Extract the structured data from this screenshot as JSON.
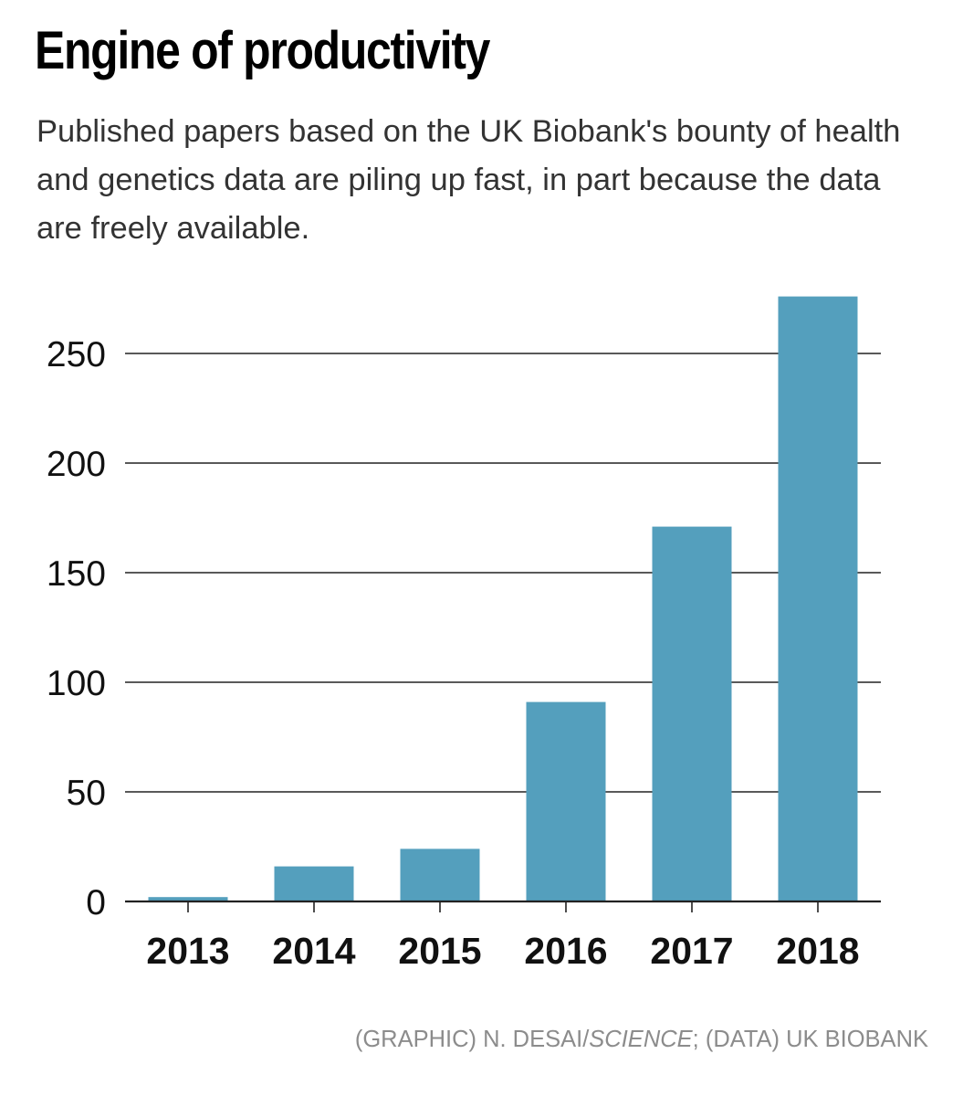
{
  "header": {
    "title": "Engine of productivity",
    "subtitle": "Published papers based on the UK Biobank's bounty of health and genetics data are piling up fast, in part because the data are freely available."
  },
  "credit": {
    "graphic_label": "(GRAPHIC) N. DESAI/",
    "publication": "SCIENCE",
    "data_label": "; (DATA) UK BIOBANK"
  },
  "colors": {
    "bar": "#549fbd",
    "grid": "#222222",
    "text": "#111111",
    "credit": "#8c8c8c"
  },
  "chart_data": {
    "type": "bar",
    "categories": [
      "2013",
      "2014",
      "2015",
      "2016",
      "2017",
      "2018"
    ],
    "values": [
      2,
      16,
      24,
      91,
      171,
      276
    ],
    "title": "Engine of productivity",
    "xlabel": "",
    "ylabel": "",
    "ylim": [
      0,
      276
    ],
    "yticks": [
      0,
      50,
      100,
      150,
      200,
      250
    ],
    "grid": true,
    "legend": "none"
  }
}
